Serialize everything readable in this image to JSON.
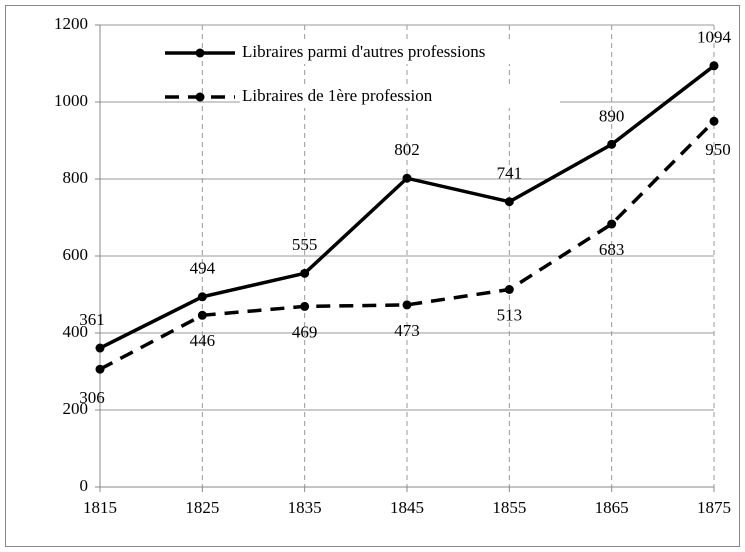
{
  "chart_data": {
    "type": "line",
    "x": [
      1815,
      1825,
      1835,
      1845,
      1855,
      1865,
      1875
    ],
    "xlim": [
      1815,
      1875
    ],
    "xticks": [
      1815,
      1825,
      1835,
      1845,
      1855,
      1865,
      1875
    ],
    "ylim": [
      0,
      1200
    ],
    "yticks": [
      0,
      200,
      400,
      600,
      800,
      1000,
      1200
    ],
    "grid": true,
    "legend": "upper left",
    "series": [
      {
        "name": "Libraires parmi d'autres professions",
        "color": "#000000",
        "dash": "solid",
        "values": [
          361,
          494,
          555,
          802,
          741,
          890,
          1094
        ]
      },
      {
        "name": "Libraires de 1ère profession",
        "color": "#000000",
        "dash": "dashed",
        "values": [
          306,
          446,
          469,
          473,
          513,
          683,
          950
        ]
      }
    ]
  }
}
